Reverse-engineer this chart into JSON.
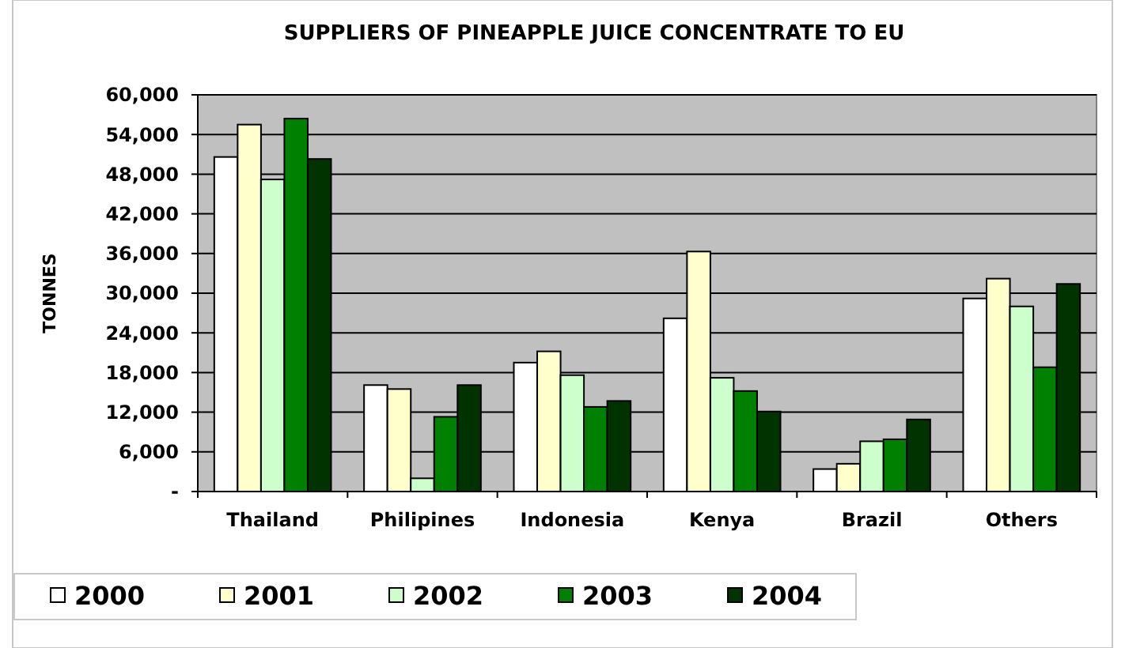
{
  "chart_data": {
    "type": "bar",
    "title": "SUPPLIERS OF PINEAPPLE JUICE CONCENTRATE TO EU",
    "ylabel": "TONNES",
    "categories": [
      "Thailand",
      "Philipines",
      "Indonesia",
      "Kenya",
      "Brazil",
      "Others"
    ],
    "series": [
      {
        "name": "2000",
        "color": "#ffffff",
        "values": [
          50600,
          16100,
          19500,
          26200,
          3400,
          29200
        ]
      },
      {
        "name": "2001",
        "color": "#ffffcc",
        "values": [
          55500,
          15500,
          21200,
          36300,
          4200,
          32200
        ]
      },
      {
        "name": "2002",
        "color": "#ccffcc",
        "values": [
          47200,
          2000,
          17600,
          17200,
          7600,
          28000
        ]
      },
      {
        "name": "2003",
        "color": "#008000",
        "values": [
          56400,
          11300,
          12800,
          15200,
          7900,
          18800
        ]
      },
      {
        "name": "2004",
        "color": "#003300",
        "values": [
          50300,
          16100,
          13700,
          12100,
          10900,
          31400
        ]
      }
    ],
    "ylim": [
      0,
      60000
    ],
    "yticks": [
      {
        "value": 0,
        "label": "-"
      },
      {
        "value": 6000,
        "label": "6,000"
      },
      {
        "value": 12000,
        "label": "12,000"
      },
      {
        "value": 18000,
        "label": "18,000"
      },
      {
        "value": 24000,
        "label": "24,000"
      },
      {
        "value": 30000,
        "label": "30,000"
      },
      {
        "value": 36000,
        "label": "36,000"
      },
      {
        "value": 42000,
        "label": "42,000"
      },
      {
        "value": 48000,
        "label": "48,000"
      },
      {
        "value": 54000,
        "label": "54,000"
      },
      {
        "value": 60000,
        "label": "60,000"
      }
    ],
    "grid": "y",
    "legend": "bottom"
  }
}
